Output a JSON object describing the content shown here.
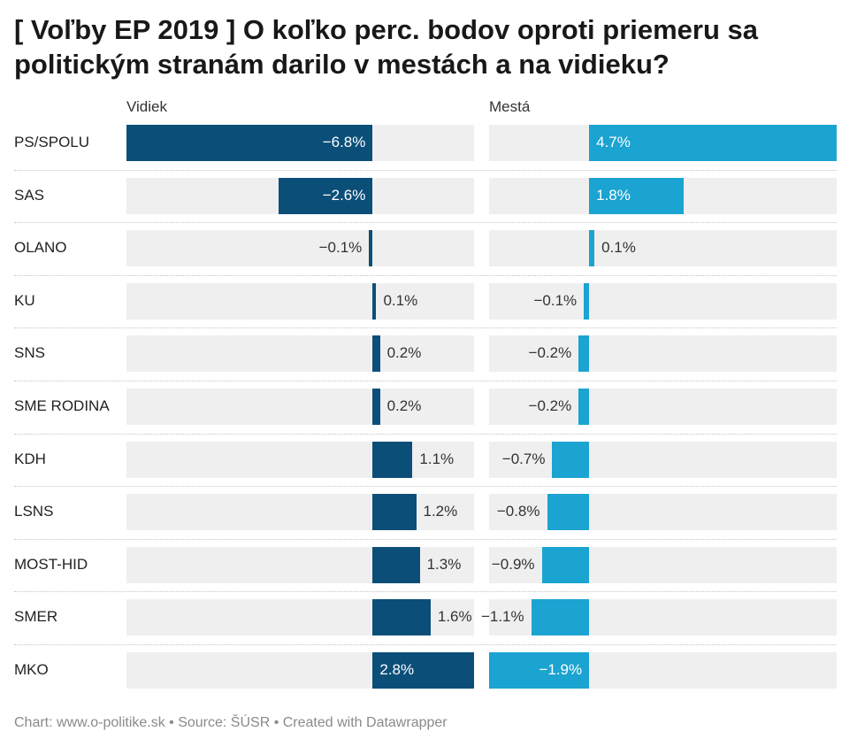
{
  "chart_data": {
    "type": "bar",
    "title": "[ Voľby EP 2019 ] O koľko perc. bodov oproti priemeru sa politickým stranám darilo v mestách a na vidieku?",
    "categories": [
      "PS/SPOLU",
      "SAS",
      "OLANO",
      "KU",
      "SNS",
      "SME RODINA",
      "KDH",
      "LSNS",
      "MOST-HID",
      "SMER",
      "MKO"
    ],
    "series": [
      {
        "name": "Vidiek",
        "values": [
          -6.8,
          -2.6,
          -0.1,
          0.1,
          0.2,
          0.2,
          1.1,
          1.2,
          1.3,
          1.6,
          2.8
        ],
        "labels": [
          "−6.8%",
          "−2.6%",
          "−0.1%",
          "0.1%",
          "0.2%",
          "0.2%",
          "1.1%",
          "1.2%",
          "1.3%",
          "1.6%",
          "2.8%"
        ],
        "color": "#0b4f79"
      },
      {
        "name": "Mestá",
        "values": [
          4.7,
          1.8,
          0.1,
          -0.1,
          -0.2,
          -0.2,
          -0.7,
          -0.8,
          -0.9,
          -1.1,
          -1.9
        ],
        "labels": [
          "4.7%",
          "1.8%",
          "0.1%",
          "−0.1%",
          "−0.2%",
          "−0.2%",
          "−0.7%",
          "−0.8%",
          "−0.9%",
          "−1.1%",
          "−1.9%"
        ],
        "color": "#1ba3d1"
      }
    ],
    "xlim_vidiek": [
      -6.8,
      2.8
    ],
    "xlim_mesta": [
      -1.9,
      4.7
    ],
    "track_color": "#efefef"
  },
  "footer": "Chart: www.o-politike.sk • Source: ŠÚSR • Created with Datawrapper"
}
